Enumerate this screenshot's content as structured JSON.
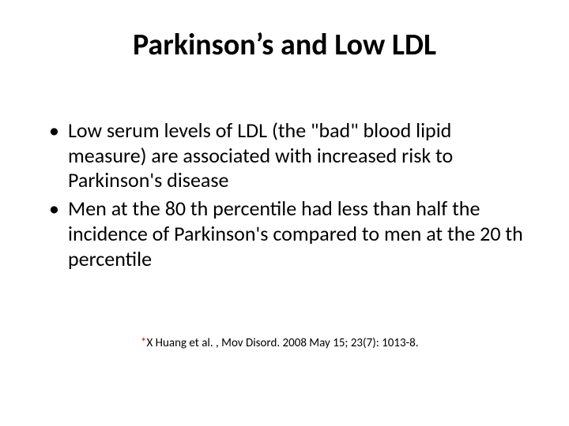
{
  "colors": {
    "background": "#ffffff",
    "text": "#000000",
    "citation_star": "#ff0000"
  },
  "typography": {
    "title_fontsize": 38,
    "title_weight": 700,
    "body_fontsize": 26,
    "body_lineheight": 1.22,
    "citation_fontsize": 15,
    "font_family": "Calibri"
  },
  "title": "Parkinson’s and Low LDL",
  "bullets": [
    "Low serum levels of LDL (the \"bad\" blood lipid measure) are associated with increased risk to Parkinson's disease",
    "Men at the 80 th percentile had less than half the incidence of Parkinson's compared to men at the 20 th percentile"
  ],
  "citation": {
    "star": "*",
    "text": "X Huang et al. , Mov Disord. 2008 May 15; 23(7): 1013-8."
  }
}
